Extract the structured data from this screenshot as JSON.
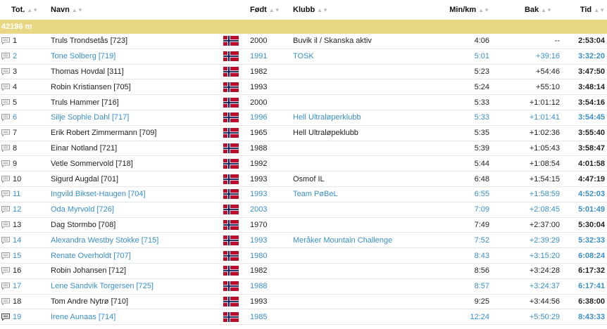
{
  "columns": {
    "tot": "Tot.",
    "navn": "Navn",
    "fodt": "Født",
    "klubb": "Klubb",
    "minkm": "Min/km",
    "bak": "Bak",
    "tid": "Tid"
  },
  "group_label": "42196 m",
  "colors": {
    "accent_link": "#3a8fc4",
    "group_bg": "#e8d785"
  },
  "rows": [
    {
      "pos": "1",
      "name": "Truls Trondsetås [723]",
      "born": "2000",
      "club": "Buvik il / Skanska aktiv",
      "pace": "4:06",
      "behind": "--",
      "time": "2:53:04"
    },
    {
      "pos": "2",
      "name": "Tone Solberg [719]",
      "born": "1991",
      "club": "TOSK",
      "pace": "5:01",
      "behind": "+39:16",
      "time": "3:32:20"
    },
    {
      "pos": "3",
      "name": "Thomas Hovdal [311]",
      "born": "1982",
      "club": "",
      "pace": "5:23",
      "behind": "+54:46",
      "time": "3:47:50"
    },
    {
      "pos": "4",
      "name": "Robin Kristiansen [705]",
      "born": "1993",
      "club": "",
      "pace": "5:24",
      "behind": "+55:10",
      "time": "3:48:14"
    },
    {
      "pos": "5",
      "name": "Truls Hammer [716]",
      "born": "2000",
      "club": "",
      "pace": "5:33",
      "behind": "+1:01:12",
      "time": "3:54:16"
    },
    {
      "pos": "6",
      "name": "Silje Sophie Dahl [717]",
      "born": "1996",
      "club": "Hell Ultraløperklubb",
      "pace": "5:33",
      "behind": "+1:01:41",
      "time": "3:54:45"
    },
    {
      "pos": "7",
      "name": "Erik Robert Zimmermann [709]",
      "born": "1965",
      "club": "Hell Ultraløpeklubb",
      "pace": "5:35",
      "behind": "+1:02:36",
      "time": "3:55:40"
    },
    {
      "pos": "8",
      "name": "Einar Notland [721]",
      "born": "1988",
      "club": "",
      "pace": "5:39",
      "behind": "+1:05:43",
      "time": "3:58:47"
    },
    {
      "pos": "9",
      "name": "Vetle Sommervold [718]",
      "born": "1992",
      "club": "",
      "pace": "5:44",
      "behind": "+1:08:54",
      "time": "4:01:58"
    },
    {
      "pos": "10",
      "name": "Sigurd Augdal [701]",
      "born": "1993",
      "club": "Osmof IL",
      "pace": "6:48",
      "behind": "+1:54:15",
      "time": "4:47:19"
    },
    {
      "pos": "11",
      "name": "Ingvild Bikset-Haugen [704]",
      "born": "1993",
      "club": "Team PøBeL",
      "pace": "6:55",
      "behind": "+1:58:59",
      "time": "4:52:03"
    },
    {
      "pos": "12",
      "name": "Oda Myrvold [726]",
      "born": "2003",
      "club": "",
      "pace": "7:09",
      "behind": "+2:08:45",
      "time": "5:01:49"
    },
    {
      "pos": "13",
      "name": "Dag Stormbo [708]",
      "born": "1970",
      "club": "",
      "pace": "7:49",
      "behind": "+2:37:00",
      "time": "5:30:04"
    },
    {
      "pos": "14",
      "name": "Alexandra Westby Stokke [715]",
      "born": "1993",
      "club": "Meråker Mountain Challenge",
      "pace": "7:52",
      "behind": "+2:39:29",
      "time": "5:32:33"
    },
    {
      "pos": "15",
      "name": "Renate Overholdt [707]",
      "born": "1980",
      "club": "",
      "pace": "8:43",
      "behind": "+3:15:20",
      "time": "6:08:24"
    },
    {
      "pos": "16",
      "name": "Robin Johansen [712]",
      "born": "1982",
      "club": "",
      "pace": "8:56",
      "behind": "+3:24:28",
      "time": "6:17:32"
    },
    {
      "pos": "17",
      "name": "Lene Sandvik Torgersen [725]",
      "born": "1988",
      "club": "",
      "pace": "8:57",
      "behind": "+3:24:37",
      "time": "6:17:41"
    },
    {
      "pos": "18",
      "name": "Tom Andre Nytrø [710]",
      "born": "1993",
      "club": "",
      "pace": "9:25",
      "behind": "+3:44:56",
      "time": "6:38:00"
    },
    {
      "pos": "19",
      "name": "Irene Aunaas [714]",
      "born": "1985",
      "club": "",
      "pace": "12:24",
      "behind": "+5:50:29",
      "time": "8:43:33"
    }
  ],
  "alt_rows": [
    2,
    6,
    11,
    12,
    14,
    15,
    17,
    19
  ],
  "dark_icon_rows": [
    19
  ]
}
